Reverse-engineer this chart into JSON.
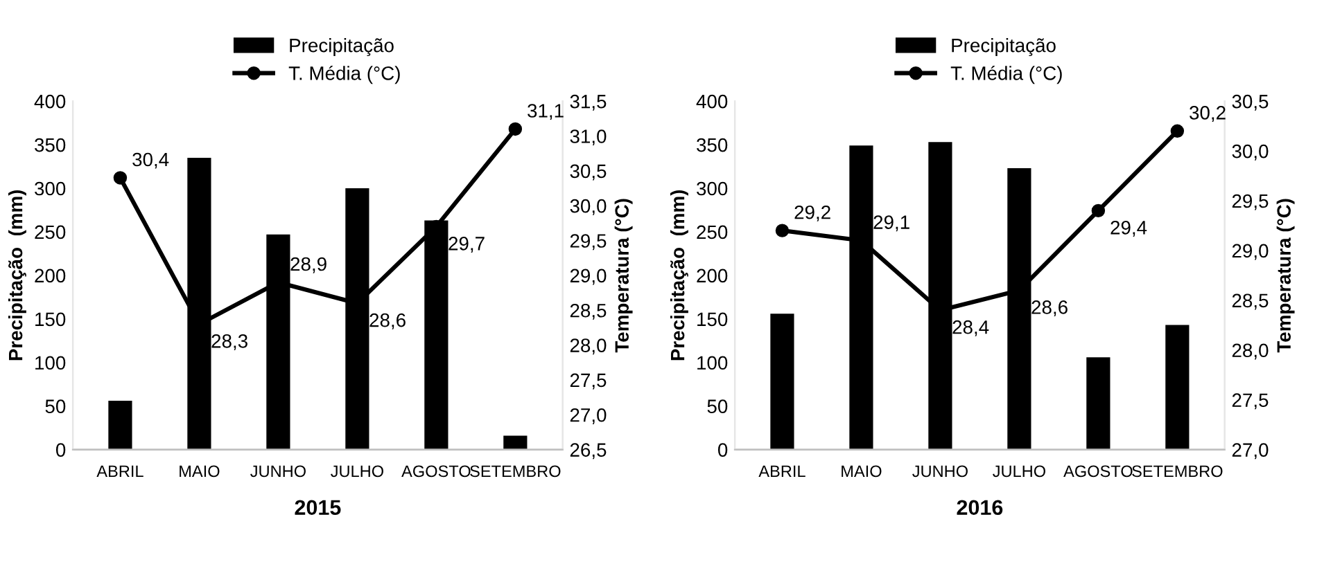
{
  "chart_data": [
    {
      "type": "bar",
      "xlabel": "2015",
      "ylabel": "Precipitação  (mm)",
      "y2label": "Temperatura (°C)",
      "categories": [
        "ABRIL",
        "MAIO",
        "JUNHO",
        "JULHO",
        "AGOSTO",
        "SETEMBRO"
      ],
      "series": [
        {
          "name": "Precipitação",
          "color": "#000000",
          "values": [
            56,
            335,
            247,
            300,
            263,
            16
          ]
        },
        {
          "name": "T. Média (°C)",
          "type": "line",
          "axis": "y2",
          "color": "#000000",
          "marker": "circle",
          "values": [
            30.4,
            28.3,
            28.9,
            28.6,
            29.7,
            31.1
          ],
          "value_labels": [
            "30,4",
            "28,3",
            "28,9",
            "28,6",
            "29,7",
            "31,1"
          ]
        }
      ],
      "ylim": [
        0,
        400
      ],
      "yticks": [
        0,
        50,
        100,
        150,
        200,
        250,
        300,
        350,
        400
      ],
      "y2lim": [
        26.5,
        31.5
      ],
      "y2ticks": [
        {
          "value": 26.5,
          "label": "26,5"
        },
        {
          "value": 27.0,
          "label": "27,0"
        },
        {
          "value": 27.5,
          "label": "27,5"
        },
        {
          "value": 28.0,
          "label": "28,0"
        },
        {
          "value": 28.5,
          "label": "28,5"
        },
        {
          "value": 29.0,
          "label": "29,0"
        },
        {
          "value": 29.5,
          "label": "29,5"
        },
        {
          "value": 30.0,
          "label": "30,0"
        },
        {
          "value": 30.5,
          "label": "30,5"
        },
        {
          "value": 31.0,
          "label": "31,0"
        },
        {
          "value": 31.5,
          "label": "31,5"
        }
      ],
      "grid": false,
      "legend": "top"
    },
    {
      "type": "bar",
      "xlabel": "2016",
      "ylabel": "Precipitação  (mm)",
      "y2label": "Temperatura (°C)",
      "categories": [
        "ABRIL",
        "MAIO",
        "JUNHO",
        "JULHO",
        "AGOSTO",
        "SETEMBRO"
      ],
      "series": [
        {
          "name": "Precipitação",
          "color": "#000000",
          "values": [
            156,
            349,
            353,
            323,
            106,
            143
          ]
        },
        {
          "name": "T. Média (°C)",
          "type": "line",
          "axis": "y2",
          "color": "#000000",
          "marker": "circle",
          "values": [
            29.2,
            29.1,
            28.4,
            28.6,
            29.4,
            30.2
          ],
          "value_labels": [
            "29,2",
            "29,1",
            "28,4",
            "28,6",
            "29,4",
            "30,2"
          ]
        }
      ],
      "ylim": [
        0,
        400
      ],
      "yticks": [
        0,
        50,
        100,
        150,
        200,
        250,
        300,
        350,
        400
      ],
      "y2lim": [
        27.0,
        30.5
      ],
      "y2ticks": [
        {
          "value": 27.0,
          "label": "27,0"
        },
        {
          "value": 27.5,
          "label": "27,5"
        },
        {
          "value": 28.0,
          "label": "28,0"
        },
        {
          "value": 28.5,
          "label": "28,5"
        },
        {
          "value": 29.0,
          "label": "29,0"
        },
        {
          "value": 29.5,
          "label": "29,5"
        },
        {
          "value": 30.0,
          "label": "30,0"
        },
        {
          "value": 30.5,
          "label": "30,5"
        }
      ],
      "grid": false,
      "legend": "top"
    }
  ]
}
